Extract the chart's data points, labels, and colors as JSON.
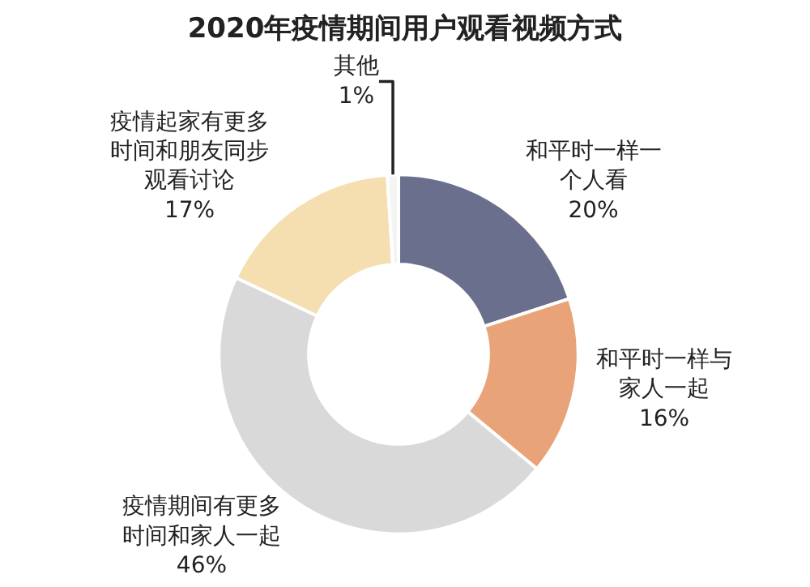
{
  "chart_data": {
    "type": "donut",
    "title": "2020年疫情期间用户观看视频方式",
    "categories": [
      "和平时一样一个人看",
      "和平时一样与家人一起",
      "疫情期间有更多时间和家人一起",
      "疫情起家有更多时间和朋友同步观看讨论",
      "其他"
    ],
    "values": [
      20,
      16,
      46,
      17,
      1
    ],
    "value_labels": [
      "20%",
      "16%",
      "46%",
      "17%",
      "1%"
    ],
    "colors": [
      "#6b6f8e",
      "#e8a478",
      "#d9d9d9",
      "#f5deb0",
      "#f4f4f4"
    ],
    "legend": false
  }
}
